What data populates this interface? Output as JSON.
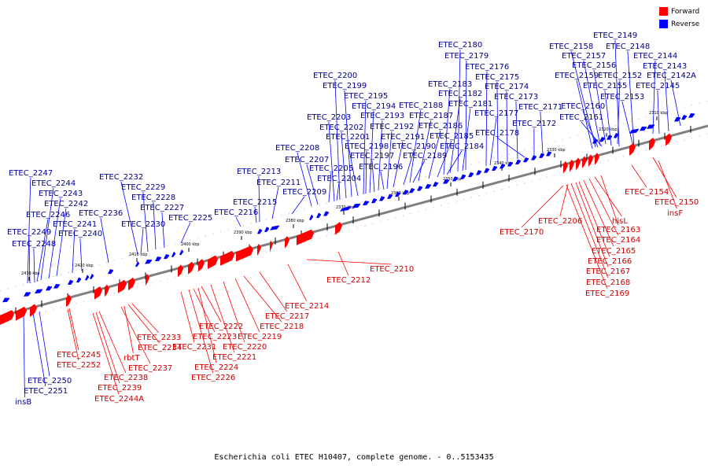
{
  "caption": "Escherichia coli ETEC H10407, complete genome. - 0..5153435",
  "legend": [
    {
      "label": "Forward",
      "color": "#ff0000"
    },
    {
      "label": "Reverse",
      "color": "#0000ff"
    }
  ],
  "colors": {
    "forward": "#ff0000",
    "reverse": "#0000ff",
    "axis": "#808080",
    "label_forward": "#cc0000",
    "label_reverse": "#00008b"
  },
  "scale_ticks": [
    "2430 kbp",
    "2420 kbp",
    "2410 kbp",
    "2400 kbp",
    "2390 kbp",
    "2380 kbp",
    "2370 kbp",
    "2360 kbp",
    "2350 kbp",
    "2340 kbp",
    "2330 kbp",
    "2320 kbp",
    "2310 kbp"
  ],
  "reverse_labels": [
    "ETEC_2149",
    "ETEC_2148",
    "ETEC_2144",
    "ETEC_2143",
    "ETEC_2142A",
    "ETEC_2145",
    "ETEC_2153",
    "ETEC_2158",
    "ETEC_2157",
    "ETEC_2156",
    "ETEC_2159",
    "ETEC_2152",
    "ETEC_2155",
    "ETEC_2160",
    "ETEC_2161",
    "ETEC_2180",
    "ETEC_2179",
    "ETEC_2176",
    "ETEC_2175",
    "ETEC_2174",
    "ETEC_2173",
    "ETEC_2171",
    "ETEC_2172",
    "ETEC_2183",
    "ETEC_2182",
    "ETEC_2181",
    "ETEC_2177",
    "ETEC_2178",
    "ETEC_2188",
    "ETEC_2187",
    "ETEC_2186",
    "ETEC_2185",
    "ETEC_2184",
    "ETEC_2200",
    "ETEC_2199",
    "ETEC_2195",
    "ETEC_2194",
    "ETEC_2193",
    "ETEC_2192",
    "ETEC_2191",
    "ETEC_2190",
    "ETEC_2189",
    "ETEC_2203",
    "ETEC_2202",
    "ETEC_2201",
    "ETEC_2198",
    "ETEC_2197",
    "ETEC_2196",
    "ETEC_2208",
    "ETEC_2207",
    "ETEC_2205",
    "ETEC_2204",
    "ETEC_2213",
    "ETEC_2211",
    "ETEC_2209",
    "ETEC_2215",
    "ETEC_2216",
    "ETEC_2232",
    "ETEC_2229",
    "ETEC_2228",
    "ETEC_2227",
    "ETEC_2225",
    "ETEC_2230",
    "ETEC_2247",
    "ETEC_2244",
    "ETEC_2243",
    "ETEC_2242",
    "ETEC_2236",
    "ETEC_2246",
    "ETEC_2241",
    "ETEC_2240",
    "ETEC_2249",
    "ETEC_2248",
    "ETEC_2250",
    "ETEC_2251",
    "insB"
  ],
  "forward_labels": [
    "ETEC_2154",
    "ETEC_2150",
    "insF",
    "hisL",
    "ETEC_2163",
    "ETEC_2164",
    "ETEC_2165",
    "ETEC_2166",
    "ETEC_2167",
    "ETEC_2168",
    "ETEC_2169",
    "ETEC_2170",
    "ETEC_2206",
    "ETEC_2210",
    "ETEC_2212",
    "ETEC_2214",
    "ETEC_2217",
    "ETEC_2218",
    "ETEC_2219",
    "ETEC_2220",
    "ETEC_2221",
    "ETEC_2222",
    "ETEC_2223",
    "ETEC_2224",
    "ETEC_2226",
    "ETEC_2231",
    "ETEC_2233",
    "ETEC_2234",
    "rbtT",
    "ETEC_2237",
    "ETEC_2238",
    "ETEC_2239",
    "ETEC_2244A",
    "ETEC_2245",
    "ETEC_2252"
  ]
}
